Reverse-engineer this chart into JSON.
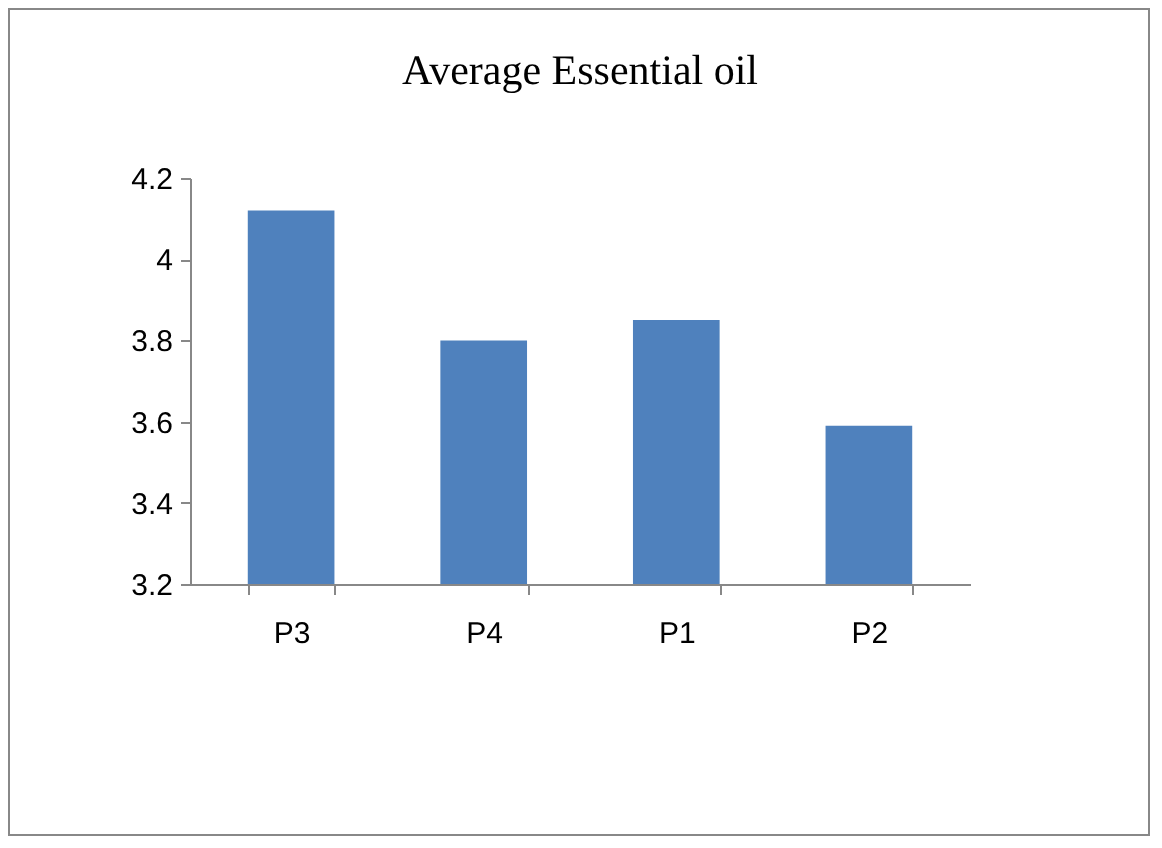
{
  "chart_data": {
    "type": "bar",
    "title": "Average Essential oil",
    "categories": [
      "P3",
      "P4",
      "P1",
      "P2"
    ],
    "values": [
      4.12,
      3.8,
      3.85,
      3.59
    ],
    "color": "#4f81bd",
    "ylim": [
      3.2,
      4.2
    ],
    "yticks": [
      3.2,
      3.4,
      3.6,
      3.8,
      4,
      4.2
    ],
    "grid": false
  }
}
